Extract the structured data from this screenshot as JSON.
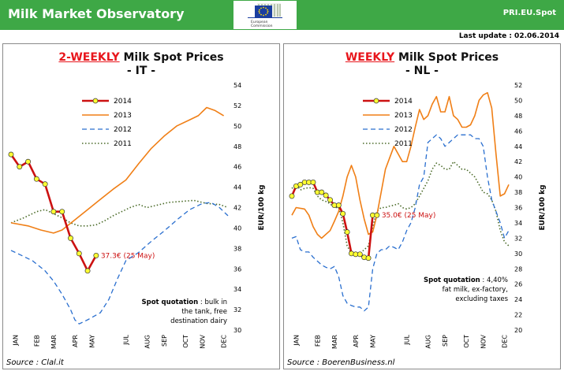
{
  "header": {
    "title": "Milk Market Observatory",
    "code": "PRI.EU.Spot",
    "last_update": "Last update : 02.06.2014",
    "logo_text": [
      "European",
      "Commission"
    ],
    "logo_icon": "eu-commission-logo",
    "color": "#3ea846"
  },
  "colors": {
    "s2014": "#cc1111",
    "marker_fill": "#ffff33",
    "s2013": "#f07f16",
    "s2012": "#2a6fcf",
    "s2011": "#4a6a28",
    "title_red": "#e8161c"
  },
  "panels": [
    {
      "title_red": "2-WEEKLY",
      "title_rest": " Milk Spot Prices",
      "title_line2": "- IT -",
      "source": "Source : Clal.it",
      "note_bold": "Spot quotation",
      "note_line1": " : bulk in",
      "note_line2": "the tank, free",
      "note_line3": "destination dairy",
      "annotation": "37.3€ (25 May)"
    },
    {
      "title_red": "WEEKLY",
      "title_rest": " Milk Spot Prices",
      "title_line2": "- NL -",
      "source": "Source : BoerenBusiness.nl",
      "note_bold": "Spot quotation",
      "note_line1": " : 4,40%",
      "note_line2": "fat milk, ex-factory,",
      "note_line3": "excluding  taxes",
      "annotation": "35.0€ (25 May)"
    }
  ],
  "chart_data": [
    {
      "type": "line",
      "ylabel": "EUR/100 kg",
      "ylim": [
        30,
        54
      ],
      "ytick_step": 2,
      "grid": false,
      "legend": "top-left",
      "x_unit": "weeks of year (1-52)",
      "categories": [
        "JAN",
        "FEB",
        "MAR",
        "APR",
        "MAY",
        "JUL",
        "AUG",
        "SEP",
        "OCT",
        "NOV",
        "DEC"
      ],
      "series": [
        {
          "name": "2014",
          "style": "solid-markers",
          "points": [
            [
              1,
              47.2
            ],
            [
              3,
              46.0
            ],
            [
              5,
              46.5
            ],
            [
              7,
              44.8
            ],
            [
              9,
              44.3
            ],
            [
              11,
              41.6
            ],
            [
              13,
              41.6
            ],
            [
              15,
              39.0
            ],
            [
              17,
              37.5
            ],
            [
              19,
              35.8
            ],
            [
              21,
              37.3
            ]
          ]
        },
        {
          "name": "2013",
          "style": "solid",
          "points": [
            [
              1,
              40.5
            ],
            [
              5,
              40.2
            ],
            [
              8,
              39.8
            ],
            [
              11,
              39.5
            ],
            [
              13,
              39.8
            ],
            [
              16,
              40.8
            ],
            [
              19,
              41.8
            ],
            [
              22,
              42.8
            ],
            [
              25,
              43.8
            ],
            [
              28,
              44.7
            ],
            [
              31,
              46.3
            ],
            [
              34,
              47.8
            ],
            [
              37,
              49.0
            ],
            [
              40,
              50.0
            ],
            [
              43,
              50.6
            ],
            [
              45,
              51.0
            ],
            [
              47,
              51.8
            ],
            [
              49,
              51.5
            ],
            [
              51,
              51.0
            ]
          ]
        },
        {
          "name": "2012",
          "style": "dashed",
          "points": [
            [
              1,
              37.8
            ],
            [
              3,
              37.4
            ],
            [
              6,
              36.8
            ],
            [
              9,
              35.8
            ],
            [
              11,
              34.8
            ],
            [
              13,
              33.5
            ],
            [
              15,
              32.0
            ],
            [
              16,
              31.0
            ],
            [
              17,
              30.6
            ],
            [
              19,
              31.0
            ],
            [
              22,
              31.7
            ],
            [
              24,
              33.0
            ],
            [
              26,
              35.0
            ],
            [
              28,
              36.8
            ],
            [
              31,
              37.6
            ],
            [
              34,
              38.7
            ],
            [
              37,
              39.7
            ],
            [
              40,
              40.8
            ],
            [
              43,
              41.8
            ],
            [
              46,
              42.4
            ],
            [
              48,
              42.5
            ],
            [
              50,
              42.0
            ],
            [
              52,
              41.2
            ]
          ]
        },
        {
          "name": "2011",
          "style": "dotted",
          "points": [
            [
              1,
              40.5
            ],
            [
              4,
              41.0
            ],
            [
              7,
              41.6
            ],
            [
              9,
              41.8
            ],
            [
              11,
              41.4
            ],
            [
              13,
              41.0
            ],
            [
              15,
              40.5
            ],
            [
              17,
              40.2
            ],
            [
              19,
              40.2
            ],
            [
              21,
              40.3
            ],
            [
              23,
              40.7
            ],
            [
              25,
              41.2
            ],
            [
              27,
              41.6
            ],
            [
              29,
              42.0
            ],
            [
              31,
              42.3
            ],
            [
              33,
              42.0
            ],
            [
              35,
              42.2
            ],
            [
              38,
              42.5
            ],
            [
              41,
              42.6
            ],
            [
              44,
              42.7
            ],
            [
              47,
              42.4
            ],
            [
              50,
              42.3
            ],
            [
              52,
              42.0
            ]
          ]
        }
      ]
    },
    {
      "type": "line",
      "ylabel": "EUR/100 kg",
      "ylim": [
        20,
        52
      ],
      "ytick_step": 2,
      "grid": false,
      "legend": "top-left",
      "x_unit": "weeks of year (1-52)",
      "categories": [
        "JAN",
        "FEB",
        "MAR",
        "APR",
        "MAY",
        "JUL",
        "AUG",
        "SEP",
        "OCT",
        "NOV",
        "DEC"
      ],
      "series": [
        {
          "name": "2014",
          "style": "solid-markers",
          "points": [
            [
              1,
              37.5
            ],
            [
              2,
              38.8
            ],
            [
              3,
              39.0
            ],
            [
              4,
              39.3
            ],
            [
              5,
              39.3
            ],
            [
              6,
              39.3
            ],
            [
              7,
              38.0
            ],
            [
              8,
              38.0
            ],
            [
              9,
              37.6
            ],
            [
              10,
              37.0
            ],
            [
              11,
              36.3
            ],
            [
              12,
              36.3
            ],
            [
              13,
              35.2
            ],
            [
              14,
              32.8
            ],
            [
              15,
              30.0
            ],
            [
              16,
              29.9
            ],
            [
              17,
              29.9
            ],
            [
              18,
              29.5
            ],
            [
              19,
              29.4
            ],
            [
              20,
              35.0
            ],
            [
              21,
              35.0
            ]
          ]
        },
        {
          "name": "2013",
          "style": "solid",
          "points": [
            [
              1,
              35.0
            ],
            [
              2,
              36.0
            ],
            [
              4,
              35.8
            ],
            [
              5,
              35.0
            ],
            [
              6,
              33.5
            ],
            [
              7,
              32.5
            ],
            [
              8,
              32.0
            ],
            [
              10,
              33.0
            ],
            [
              11,
              34.2
            ],
            [
              12,
              35.5
            ],
            [
              13,
              37.5
            ],
            [
              14,
              40.0
            ],
            [
              15,
              41.5
            ],
            [
              16,
              40.0
            ],
            [
              17,
              37.0
            ],
            [
              18,
              34.5
            ],
            [
              19,
              32.5
            ],
            [
              20,
              32.8
            ],
            [
              21,
              35.0
            ],
            [
              22,
              38.0
            ],
            [
              23,
              41.0
            ],
            [
              24,
              42.5
            ],
            [
              25,
              44.0
            ],
            [
              26,
              43.0
            ],
            [
              27,
              42.0
            ],
            [
              28,
              42.0
            ],
            [
              29,
              44.0
            ],
            [
              30,
              46.5
            ],
            [
              31,
              48.8
            ],
            [
              32,
              47.5
            ],
            [
              33,
              48.0
            ],
            [
              34,
              49.5
            ],
            [
              35,
              50.5
            ],
            [
              36,
              48.5
            ],
            [
              37,
              48.5
            ],
            [
              38,
              50.5
            ],
            [
              39,
              48.0
            ],
            [
              40,
              47.5
            ],
            [
              41,
              46.5
            ],
            [
              42,
              46.5
            ],
            [
              43,
              46.8
            ],
            [
              44,
              48.0
            ],
            [
              45,
              50.0
            ],
            [
              46,
              50.7
            ],
            [
              47,
              51.0
            ],
            [
              48,
              49.0
            ],
            [
              49,
              43.0
            ],
            [
              50,
              37.5
            ],
            [
              51,
              37.8
            ],
            [
              52,
              39.0
            ]
          ]
        },
        {
          "name": "2012",
          "style": "dashed",
          "points": [
            [
              1,
              32.0
            ],
            [
              2,
              32.2
            ],
            [
              3,
              30.5
            ],
            [
              4,
              30.2
            ],
            [
              5,
              30.2
            ],
            [
              6,
              29.5
            ],
            [
              7,
              29.0
            ],
            [
              8,
              28.5
            ],
            [
              9,
              28.2
            ],
            [
              10,
              28.0
            ],
            [
              11,
              28.3
            ],
            [
              12,
              27.0
            ],
            [
              13,
              24.5
            ],
            [
              14,
              23.5
            ],
            [
              15,
              23.2
            ],
            [
              16,
              23.0
            ],
            [
              17,
              23.0
            ],
            [
              18,
              22.5
            ],
            [
              19,
              23.0
            ],
            [
              20,
              28.0
            ],
            [
              21,
              30.0
            ],
            [
              22,
              30.5
            ],
            [
              23,
              30.5
            ],
            [
              24,
              31.0
            ],
            [
              25,
              30.8
            ],
            [
              26,
              30.5
            ],
            [
              27,
              31.5
            ],
            [
              28,
              33.0
            ],
            [
              29,
              34.0
            ],
            [
              30,
              36.0
            ],
            [
              31,
              39.0
            ],
            [
              32,
              40.0
            ],
            [
              33,
              44.5
            ],
            [
              34,
              45.0
            ],
            [
              35,
              45.5
            ],
            [
              36,
              45.0
            ],
            [
              37,
              44.0
            ],
            [
              38,
              44.5
            ],
            [
              39,
              45.0
            ],
            [
              40,
              45.5
            ],
            [
              41,
              45.5
            ],
            [
              42,
              45.5
            ],
            [
              43,
              45.5
            ],
            [
              44,
              45.0
            ],
            [
              45,
              45.0
            ],
            [
              46,
              44.0
            ],
            [
              47,
              40.0
            ],
            [
              48,
              37.0
            ],
            [
              49,
              35.5
            ],
            [
              50,
              34.0
            ],
            [
              51,
              32.0
            ],
            [
              52,
              33.0
            ]
          ]
        },
        {
          "name": "2011",
          "style": "dotted",
          "points": [
            [
              1,
              38.5
            ],
            [
              2,
              39.0
            ],
            [
              3,
              38.3
            ],
            [
              4,
              38.5
            ],
            [
              5,
              38.6
            ],
            [
              6,
              38.5
            ],
            [
              7,
              37.5
            ],
            [
              8,
              37.0
            ],
            [
              9,
              36.8
            ],
            [
              10,
              36.5
            ],
            [
              11,
              36.0
            ],
            [
              12,
              36.0
            ],
            [
              13,
              34.0
            ],
            [
              14,
              31.0
            ],
            [
              15,
              30.0
            ],
            [
              16,
              30.0
            ],
            [
              17,
              30.0
            ],
            [
              18,
              30.5
            ],
            [
              19,
              31.0
            ],
            [
              20,
              33.5
            ],
            [
              21,
              35.5
            ],
            [
              22,
              36.0
            ],
            [
              23,
              36.0
            ],
            [
              24,
              36.2
            ],
            [
              25,
              36.3
            ],
            [
              26,
              36.5
            ],
            [
              27,
              36.0
            ],
            [
              28,
              35.8
            ],
            [
              29,
              36.0
            ],
            [
              30,
              36.5
            ],
            [
              31,
              37.5
            ],
            [
              32,
              38.5
            ],
            [
              33,
              39.5
            ],
            [
              34,
              41.0
            ],
            [
              35,
              41.8
            ],
            [
              36,
              41.5
            ],
            [
              37,
              41.0
            ],
            [
              38,
              41.0
            ],
            [
              39,
              42.0
            ],
            [
              40,
              41.5
            ],
            [
              41,
              41.0
            ],
            [
              42,
              41.0
            ],
            [
              43,
              40.5
            ],
            [
              44,
              40.0
            ],
            [
              45,
              39.0
            ],
            [
              46,
              38.0
            ],
            [
              47,
              37.8
            ],
            [
              48,
              37.0
            ],
            [
              49,
              35.5
            ],
            [
              50,
              33.0
            ],
            [
              51,
              31.5
            ],
            [
              52,
              31.0
            ]
          ]
        }
      ]
    }
  ]
}
